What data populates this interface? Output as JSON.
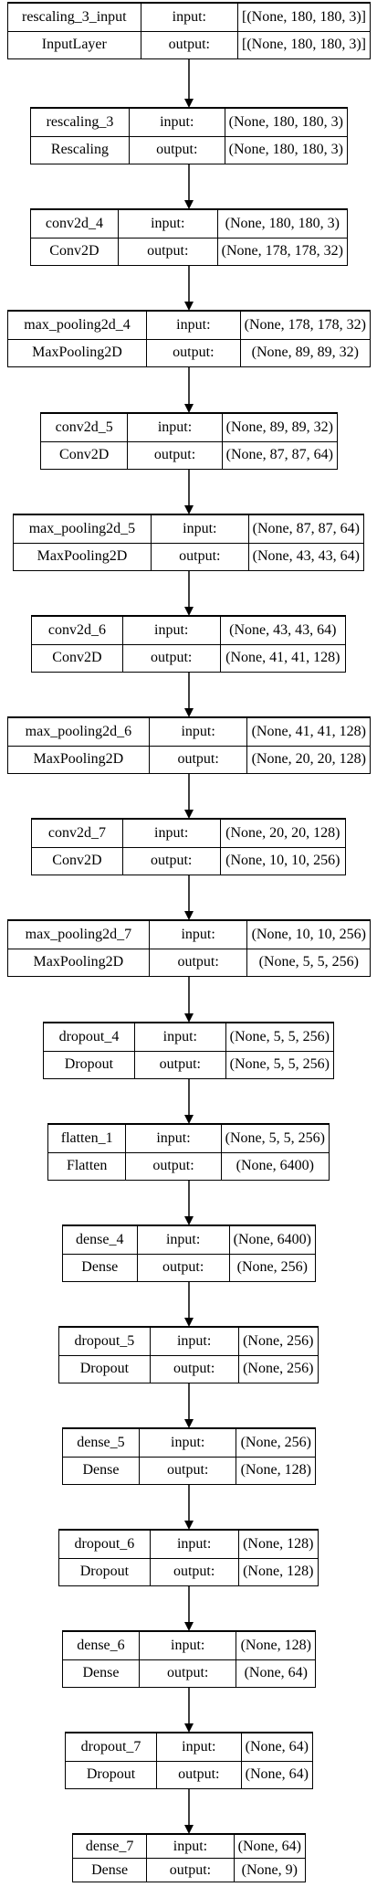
{
  "diagram": {
    "layers": [
      {
        "name": "rescaling_3_input",
        "type": "InputLayer",
        "input": "[(None, 180, 180, 3)]",
        "output": "[(None, 180, 180, 3)]"
      },
      {
        "name": "rescaling_3",
        "type": "Rescaling",
        "input": "(None, 180, 180, 3)",
        "output": "(None, 180, 180, 3)"
      },
      {
        "name": "conv2d_4",
        "type": "Conv2D",
        "input": "(None, 180, 180, 3)",
        "output": "(None, 178, 178, 32)"
      },
      {
        "name": "max_pooling2d_4",
        "type": "MaxPooling2D",
        "input": "(None, 178, 178, 32)",
        "output": "(None, 89, 89, 32)"
      },
      {
        "name": "conv2d_5",
        "type": "Conv2D",
        "input": "(None, 89, 89, 32)",
        "output": "(None, 87, 87, 64)"
      },
      {
        "name": "max_pooling2d_5",
        "type": "MaxPooling2D",
        "input": "(None, 87, 87, 64)",
        "output": "(None, 43, 43, 64)"
      },
      {
        "name": "conv2d_6",
        "type": "Conv2D",
        "input": "(None, 43, 43, 64)",
        "output": "(None, 41, 41, 128)"
      },
      {
        "name": "max_pooling2d_6",
        "type": "MaxPooling2D",
        "input": "(None, 41, 41, 128)",
        "output": "(None, 20, 20, 128)"
      },
      {
        "name": "conv2d_7",
        "type": "Conv2D",
        "input": "(None, 20, 20, 128)",
        "output": "(None, 10, 10, 256)"
      },
      {
        "name": "max_pooling2d_7",
        "type": "MaxPooling2D",
        "input": "(None, 10, 10, 256)",
        "output": "(None, 5, 5, 256)"
      },
      {
        "name": "dropout_4",
        "type": "Dropout",
        "input": "(None, 5, 5, 256)",
        "output": "(None, 5, 5, 256)"
      },
      {
        "name": "flatten_1",
        "type": "Flatten",
        "input": "(None, 5, 5, 256)",
        "output": "(None, 6400)"
      },
      {
        "name": "dense_4",
        "type": "Dense",
        "input": "(None, 6400)",
        "output": "(None, 256)"
      },
      {
        "name": "dropout_5",
        "type": "Dropout",
        "input": "(None, 256)",
        "output": "(None, 256)"
      },
      {
        "name": "dense_5",
        "type": "Dense",
        "input": "(None, 256)",
        "output": "(None, 128)"
      },
      {
        "name": "dropout_6",
        "type": "Dropout",
        "input": "(None, 128)",
        "output": "(None, 128)"
      },
      {
        "name": "dense_6",
        "type": "Dense",
        "input": "(None, 128)",
        "output": "(None, 64)"
      },
      {
        "name": "dropout_7",
        "type": "Dropout",
        "input": "(None, 64)",
        "output": "(None, 64)"
      },
      {
        "name": "dense_7",
        "type": "Dense",
        "input": "(None, 64)",
        "output": "(None, 9)"
      }
    ],
    "input_label": "input:",
    "output_label": "output:"
  }
}
